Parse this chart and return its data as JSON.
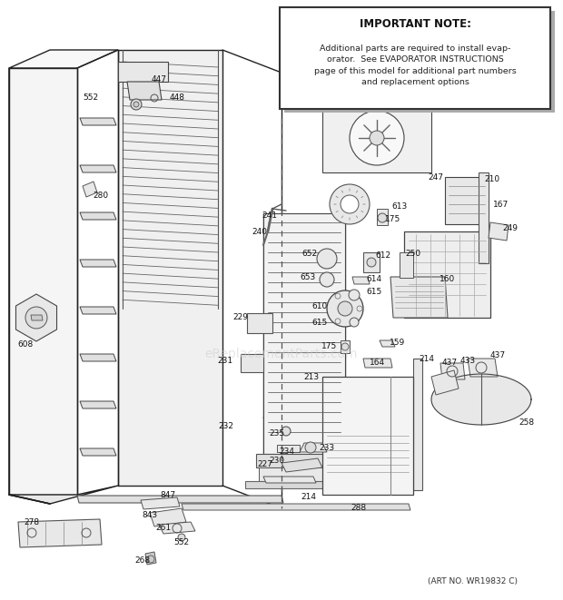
{
  "art_no": "(ART NO. WR19832 C)",
  "bg_color": "#ffffff",
  "note_title": "IMPORTANT NOTE:",
  "note_text": "Additional parts are required to install evap-\norator.  See EVAPORATOR INSTRUCTIONS\npage of this model for additional part numbers\nand replacement options",
  "watermark": "eReplacementParts.com",
  "fig_width": 6.2,
  "fig_height": 6.61,
  "dpi": 100
}
